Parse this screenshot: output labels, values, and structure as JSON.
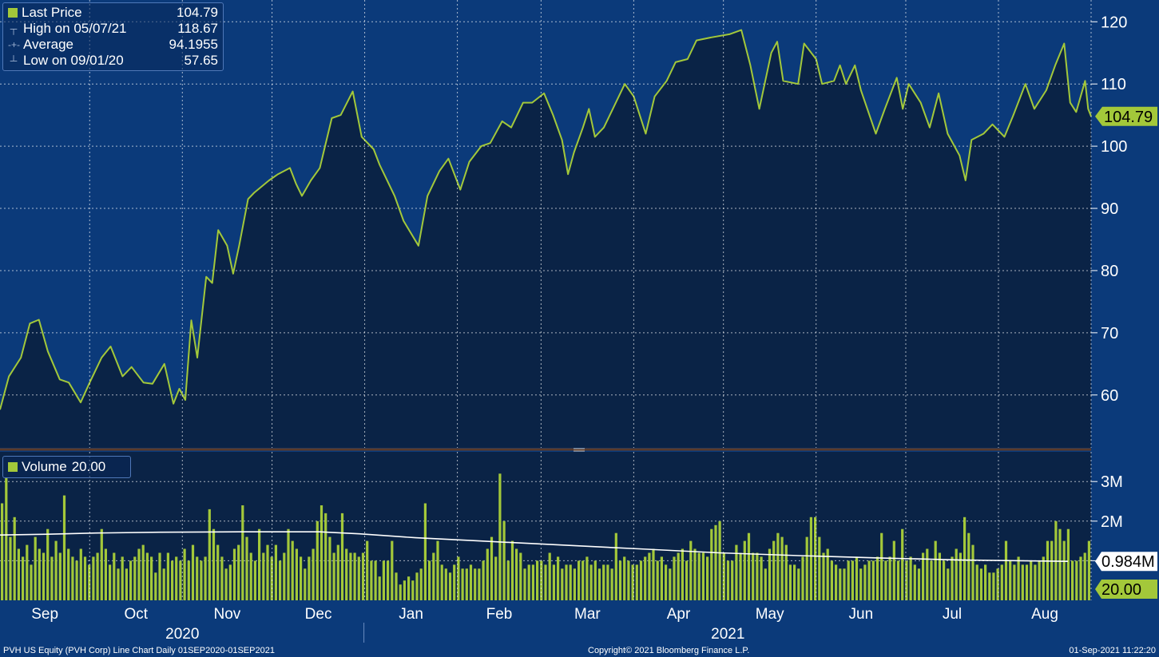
{
  "legend_price": {
    "last_label": "Last Price",
    "last_value": "104.79",
    "high_label": "High on 05/07/21",
    "high_value": "118.67",
    "avg_label": "Average",
    "avg_value": "94.1955",
    "low_label": "Low on 09/01/20",
    "low_value": "57.65"
  },
  "legend_volume": {
    "label": "Volume",
    "value": "20.00"
  },
  "footer": {
    "left": "PVH US Equity (PVH Corp) Line Chart  Daily 01SEP2020-01SEP2021",
    "center": "Copyright© 2021 Bloomberg Finance L.P.",
    "right": "01-Sep-2021 11:22:20"
  },
  "colors": {
    "background": "#0b3a7a",
    "plot_fill": "#0a2346",
    "price_line": "#a3c83a",
    "volume_bar": "#a3c83a",
    "avg_line": "#ffffff",
    "grid": "#ffffff"
  },
  "chart_data": [
    {
      "type": "line",
      "title": "Last Price",
      "x_tick_labels": [
        "Sep",
        "Oct",
        "Nov",
        "Dec",
        "Jan",
        "Feb",
        "Mar",
        "Apr",
        "May",
        "Jun",
        "Jul",
        "Aug"
      ],
      "year_labels": [
        "2020",
        "2021"
      ],
      "x_range": [
        "2020-09-01",
        "2021-09-01"
      ],
      "ylim": [
        51.5,
        123.5
      ],
      "y_ticks": [
        60,
        70,
        80,
        90,
        100,
        110,
        120
      ],
      "grid": true,
      "last_value_label": "104.79",
      "series": [
        {
          "name": "Last Price",
          "points": [
            [
              "2020-09-01",
              57.65
            ],
            [
              "2020-09-04",
              63
            ],
            [
              "2020-09-08",
              66
            ],
            [
              "2020-09-11",
              71.5
            ],
            [
              "2020-09-14",
              72.1
            ],
            [
              "2020-09-17",
              67
            ],
            [
              "2020-09-21",
              62.5
            ],
            [
              "2020-09-24",
              62
            ],
            [
              "2020-09-28",
              58.8
            ],
            [
              "2020-10-01",
              62
            ],
            [
              "2020-10-05",
              66
            ],
            [
              "2020-10-08",
              67.8
            ],
            [
              "2020-10-12",
              63
            ],
            [
              "2020-10-15",
              64.5
            ],
            [
              "2020-10-19",
              62
            ],
            [
              "2020-10-22",
              61.8
            ],
            [
              "2020-10-26",
              65
            ],
            [
              "2020-10-29",
              58.6
            ],
            [
              "2020-10-31",
              61
            ],
            [
              "2020-11-02",
              59.2
            ],
            [
              "2020-11-04",
              72
            ],
            [
              "2020-11-06",
              66
            ],
            [
              "2020-11-09",
              79
            ],
            [
              "2020-11-11",
              78
            ],
            [
              "2020-11-13",
              86.5
            ],
            [
              "2020-11-16",
              84
            ],
            [
              "2020-11-18",
              79.5
            ],
            [
              "2020-11-20",
              84
            ],
            [
              "2020-11-23",
              91.5
            ],
            [
              "2020-11-25",
              92.5
            ],
            [
              "2020-11-30",
              94.5
            ],
            [
              "2020-12-03",
              95.5
            ],
            [
              "2020-12-07",
              96.5
            ],
            [
              "2020-12-09",
              94
            ],
            [
              "2020-12-11",
              92
            ],
            [
              "2020-12-14",
              94.5
            ],
            [
              "2020-12-17",
              96.5
            ],
            [
              "2020-12-21",
              104.5
            ],
            [
              "2020-12-24",
              105
            ],
            [
              "2020-12-28",
              108.8
            ],
            [
              "2020-12-31",
              101.5
            ],
            [
              "2021-01-04",
              99.5
            ],
            [
              "2021-01-06",
              97
            ],
            [
              "2021-01-08",
              95
            ],
            [
              "2021-01-11",
              92
            ],
            [
              "2021-01-14",
              88
            ],
            [
              "2021-01-19",
              84
            ],
            [
              "2021-01-22",
              92
            ],
            [
              "2021-01-26",
              96
            ],
            [
              "2021-01-29",
              98
            ],
            [
              "2021-02-02",
              93
            ],
            [
              "2021-02-05",
              97.5
            ],
            [
              "2021-02-09",
              100
            ],
            [
              "2021-02-12",
              100.5
            ],
            [
              "2021-02-16",
              104
            ],
            [
              "2021-02-19",
              103
            ],
            [
              "2021-02-23",
              107
            ],
            [
              "2021-02-26",
              107
            ],
            [
              "2021-03-02",
              108.5
            ],
            [
              "2021-03-05",
              105
            ],
            [
              "2021-03-08",
              101
            ],
            [
              "2021-03-10",
              95.5
            ],
            [
              "2021-03-12",
              99
            ],
            [
              "2021-03-15",
              103
            ],
            [
              "2021-03-17",
              106
            ],
            [
              "2021-03-19",
              101.5
            ],
            [
              "2021-03-22",
              103
            ],
            [
              "2021-03-25",
              106
            ],
            [
              "2021-03-29",
              110
            ],
            [
              "2021-04-01",
              108
            ],
            [
              "2021-04-05",
              102
            ],
            [
              "2021-04-08",
              108
            ],
            [
              "2021-04-12",
              110.5
            ],
            [
              "2021-04-15",
              113.5
            ],
            [
              "2021-04-19",
              114
            ],
            [
              "2021-04-22",
              117
            ],
            [
              "2021-04-27",
              117.5
            ],
            [
              "2021-05-03",
              118
            ],
            [
              "2021-05-07",
              118.67
            ],
            [
              "2021-05-10",
              113
            ],
            [
              "2021-05-13",
              106
            ],
            [
              "2021-05-17",
              115
            ],
            [
              "2021-05-19",
              116.8
            ],
            [
              "2021-05-21",
              110.5
            ],
            [
              "2021-05-26",
              110
            ],
            [
              "2021-05-28",
              116.5
            ],
            [
              "2021-06-01",
              114
            ],
            [
              "2021-06-03",
              110
            ],
            [
              "2021-06-07",
              110.5
            ],
            [
              "2021-06-09",
              113
            ],
            [
              "2021-06-11",
              110
            ],
            [
              "2021-06-14",
              113
            ],
            [
              "2021-06-16",
              109
            ],
            [
              "2021-06-21",
              102
            ],
            [
              "2021-06-24",
              106
            ],
            [
              "2021-06-28",
              111
            ],
            [
              "2021-06-30",
              106
            ],
            [
              "2021-07-02",
              110
            ],
            [
              "2021-07-06",
              107
            ],
            [
              "2021-07-09",
              103
            ],
            [
              "2021-07-12",
              108.5
            ],
            [
              "2021-07-15",
              102
            ],
            [
              "2021-07-19",
              98.5
            ],
            [
              "2021-07-21",
              94.5
            ],
            [
              "2021-07-23",
              101
            ],
            [
              "2021-07-27",
              102
            ],
            [
              "2021-07-30",
              103.5
            ],
            [
              "2021-08-03",
              101.5
            ],
            [
              "2021-08-06",
              105
            ],
            [
              "2021-08-10",
              110
            ],
            [
              "2021-08-13",
              106
            ],
            [
              "2021-08-17",
              109
            ],
            [
              "2021-08-20",
              113
            ],
            [
              "2021-08-23",
              116.5
            ],
            [
              "2021-08-25",
              107
            ],
            [
              "2021-08-27",
              105.5
            ],
            [
              "2021-08-30",
              110.5
            ],
            [
              "2021-08-31",
              106
            ],
            [
              "2021-09-01",
              104.79
            ]
          ]
        }
      ]
    },
    {
      "type": "bar",
      "title": "Volume",
      "y_unit": "M",
      "ylim": [
        0,
        3.75
      ],
      "y_ticks": [
        1,
        2,
        3
      ],
      "y_tick_labels": [
        "",
        "2M",
        "3M"
      ],
      "grid": true,
      "avg_last_value_label": "0.984M",
      "last_value_label": "20.00",
      "series": [
        {
          "name": "Volume",
          "values": [
            2.45,
            3.1,
            1.6,
            2.1,
            1.3,
            1.1,
            1.4,
            0.9,
            1.6,
            1.3,
            1.2,
            1.8,
            1.1,
            1.5,
            1.2,
            2.65,
            1.3,
            1.1,
            1.0,
            1.3,
            1.1,
            0.9,
            1.1,
            1.2,
            1.8,
            1.3,
            0.9,
            1.2,
            0.8,
            1.1,
            0.8,
            1.0,
            1.1,
            1.3,
            1.4,
            1.2,
            1.1,
            0.7,
            1.2,
            0.8,
            1.2,
            1.0,
            1.1,
            1.0,
            1.3,
            1.0,
            1.4,
            1.1,
            1.0,
            1.1,
            2.3,
            1.8,
            1.4,
            1.1,
            0.8,
            0.9,
            1.3,
            1.4,
            2.4,
            1.6,
            1.2,
            1.0,
            1.8,
            1.2,
            1.4,
            1.1,
            1.4,
            1.0,
            1.2,
            1.8,
            1.5,
            1.3,
            1.1,
            0.8,
            1.1,
            1.3,
            2.0,
            2.4,
            2.2,
            1.6,
            1.2,
            1.4,
            2.2,
            1.3,
            1.2,
            1.2,
            1.1,
            1.2,
            1.5,
            1.0,
            1.0,
            0.6,
            1.0,
            1.0,
            1.5,
            0.7,
            0.4,
            0.5,
            0.6,
            0.5,
            0.7,
            0.8,
            2.45,
            1.0,
            1.2,
            1.5,
            0.9,
            0.8,
            0.7,
            0.9,
            1.1,
            0.8,
            0.8,
            0.9,
            0.8,
            0.8,
            1.0,
            1.3,
            1.6,
            1.1,
            3.2,
            2.0,
            1.0,
            1.5,
            1.3,
            1.2,
            0.8,
            0.9,
            0.9,
            1.0,
            1.0,
            0.9,
            1.2,
            0.9,
            1.1,
            0.8,
            0.9,
            0.9,
            0.8,
            1.0,
            1.0,
            1.1,
            0.9,
            1.0,
            0.8,
            0.9,
            0.9,
            0.8,
            1.7,
            1.0,
            1.1,
            1.0,
            0.9,
            0.9,
            1.0,
            1.1,
            1.2,
            1.3,
            1.0,
            1.1,
            0.9,
            0.8,
            1.1,
            1.2,
            1.3,
            1.0,
            1.5,
            1.3,
            1.2,
            1.2,
            1.1,
            1.8,
            1.9,
            2.0,
            1.2,
            1.0,
            1.0,
            1.4,
            1.2,
            1.5,
            1.7,
            1.2,
            1.2,
            1.1,
            0.8,
            1.3,
            1.5,
            1.7,
            1.6,
            1.4,
            0.9,
            0.9,
            0.8,
            1.1,
            1.6,
            2.1,
            2.1,
            1.6,
            1.2,
            1.3,
            1.0,
            0.9,
            0.8,
            0.8,
            1.0,
            1.0,
            1.1,
            0.8,
            0.9,
            1.0,
            1.0,
            1.1,
            1.7,
            1.0,
            1.1,
            1.5,
            1.0,
            1.8,
            1.0,
            1.1,
            0.9,
            0.8,
            1.2,
            1.3,
            1.0,
            1.5,
            1.2,
            1.0,
            0.8,
            1.1,
            1.3,
            1.2,
            2.1,
            1.7,
            1.4,
            0.9,
            0.8,
            0.9,
            0.7,
            0.7,
            0.8,
            0.9,
            1.5,
            1.0,
            0.9,
            1.1,
            0.9,
            0.9,
            1.0,
            0.9,
            1.0,
            1.1,
            1.5,
            1.5,
            2.0,
            1.8,
            1.5,
            1.8,
            1.0,
            1.0,
            1.1,
            1.2,
            1.5
          ]
        },
        {
          "name": "Volume average",
          "points": [
            [
              0,
              1.65
            ],
            [
              60,
              1.67
            ],
            [
              120,
              1.7
            ],
            [
              200,
              1.72
            ],
            [
              300,
              1.73
            ],
            [
              400,
              1.73
            ],
            [
              450,
              1.68
            ],
            [
              520,
              1.58
            ],
            [
              600,
              1.5
            ],
            [
              700,
              1.4
            ],
            [
              800,
              1.3
            ],
            [
              900,
              1.2
            ],
            [
              1000,
              1.13
            ],
            [
              1100,
              1.07
            ],
            [
              1200,
              1.02
            ],
            [
              1337,
              0.984
            ]
          ]
        }
      ]
    }
  ]
}
